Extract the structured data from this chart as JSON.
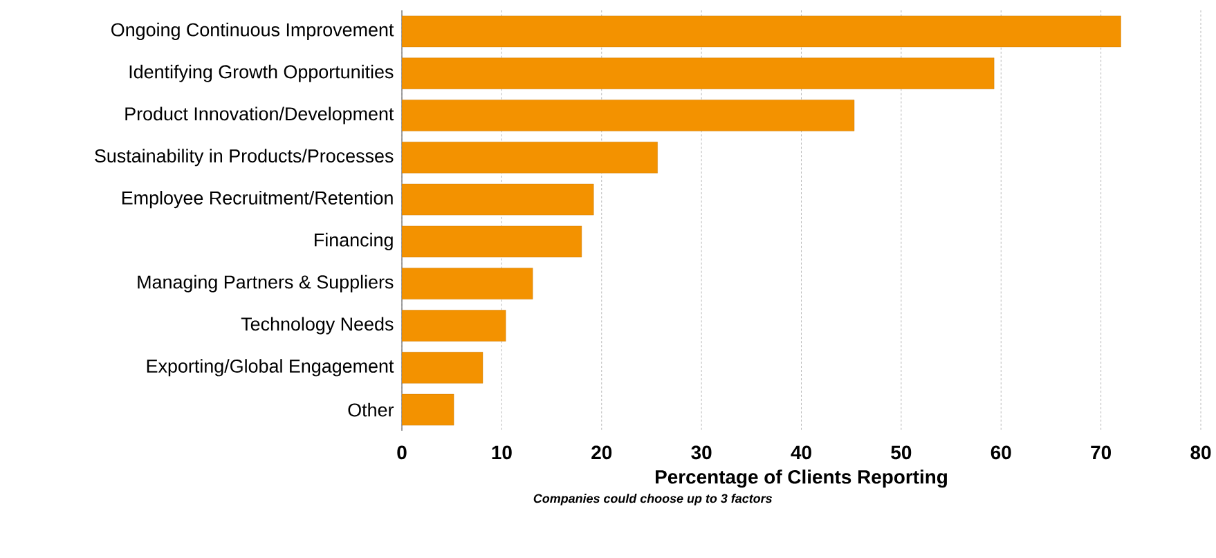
{
  "chart_data": {
    "type": "bar",
    "orientation": "horizontal",
    "xlabel": "Percentage of Clients Reporting",
    "annotations": [
      "Companies could choose up to 3 factors"
    ],
    "categories": [
      "Ongoing Continuous Improvement",
      "Identifying Growth Opportunities",
      "Product Innovation/Development",
      "Sustainability in Products/Processes",
      "Employee Recruitment/Retention",
      "Financing",
      "Managing Partners & Suppliers",
      "Technology Needs",
      "Exporting/Global Engagement",
      "Other"
    ],
    "values": [
      72.0,
      59.3,
      45.3,
      25.6,
      19.2,
      18.0,
      13.1,
      10.4,
      8.1,
      5.2
    ],
    "color": "#f39200",
    "xlim": [
      0,
      80
    ],
    "xticks": [
      0,
      10,
      20,
      30,
      40,
      50,
      60,
      70,
      80
    ],
    "grid": "x"
  }
}
